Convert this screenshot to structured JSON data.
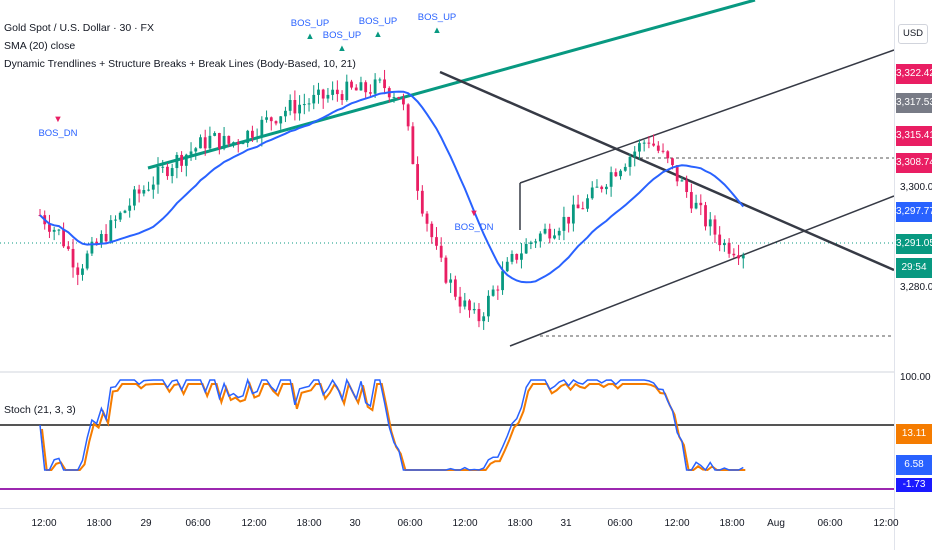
{
  "legend": {
    "symbol": "Gold Spot / U.S. Dollar · 30 · FX",
    "sma": "SMA (20) close",
    "indicator": "Dynamic Trendlines + Structure Breaks + Break Lines (Body-Based, 10, 21)",
    "stoch": "Stoch (21, 3, 3)"
  },
  "currency_button": "USD",
  "price_labels": [
    {
      "text": "3,322.42",
      "color": "#e91e63"
    },
    {
      "text": "3,317.53",
      "color": "#787b86"
    },
    {
      "text": "3,315.41",
      "color": "#e91e63"
    },
    {
      "text": "3,308.74",
      "color": "#e91e63"
    },
    {
      "text": "3,300.00",
      "color": "#131722"
    },
    {
      "text": "3,297.77",
      "color": "#2962ff"
    },
    {
      "text": "3,291.05",
      "color": "#089981"
    },
    {
      "text": "29:54",
      "color": "#089981"
    },
    {
      "text": "3,280.00",
      "color": "#131722"
    }
  ],
  "stoch_labels": [
    {
      "text": "100.00",
      "color": "#131722"
    },
    {
      "text": "13.11",
      "color": "#f57c00"
    },
    {
      "text": "6.58",
      "color": "#2962ff"
    },
    {
      "text": "-1.73",
      "color": "#1a1aff"
    }
  ],
  "time_ticks": [
    "12:00",
    "18:00",
    "29",
    "06:00",
    "12:00",
    "18:00",
    "30",
    "06:00",
    "12:00",
    "18:00",
    "31",
    "06:00",
    "12:00",
    "18:00",
    "Aug",
    "06:00",
    "12:00"
  ],
  "bos_labels": [
    {
      "text": "BOS_UP",
      "color": "#2962ff",
      "dir": "up"
    },
    {
      "text": "BOS_UP",
      "color": "#2962ff",
      "dir": "up"
    },
    {
      "text": "BOS_UP",
      "color": "#2962ff",
      "dir": "up"
    },
    {
      "text": "BOS_UP",
      "color": "#2962ff",
      "dir": "up"
    },
    {
      "text": "BOS_DN",
      "color": "#2962ff",
      "dir": "down"
    },
    {
      "text": "BOS_DN",
      "color": "#2962ff",
      "dir": "down"
    }
  ],
  "colors": {
    "up": "#089981",
    "down": "#e91e63",
    "sma": "#2962ff",
    "trend_up": "#089981",
    "trend_down": "#363a45",
    "stoch_k": "#2962ff",
    "stoch_d": "#f57c00"
  },
  "chart_data": {
    "type": "candlestick",
    "title": "Gold Spot / U.S. Dollar · 30 · FX",
    "price_ylim": [
      3275,
      3330
    ],
    "stoch_ylim": [
      -5,
      100
    ],
    "close_path": [
      3297,
      3294,
      3288,
      3292,
      3296,
      3300,
      3303,
      3306,
      3308,
      3310,
      3309,
      3311,
      3313,
      3315,
      3316,
      3317,
      3318,
      3318,
      3319,
      3317,
      3300,
      3289,
      3283,
      3279,
      3285,
      3290,
      3293,
      3295,
      3297,
      3300,
      3304,
      3307,
      3310,
      3306,
      3301,
      3296,
      3292,
      3291
    ]
  }
}
